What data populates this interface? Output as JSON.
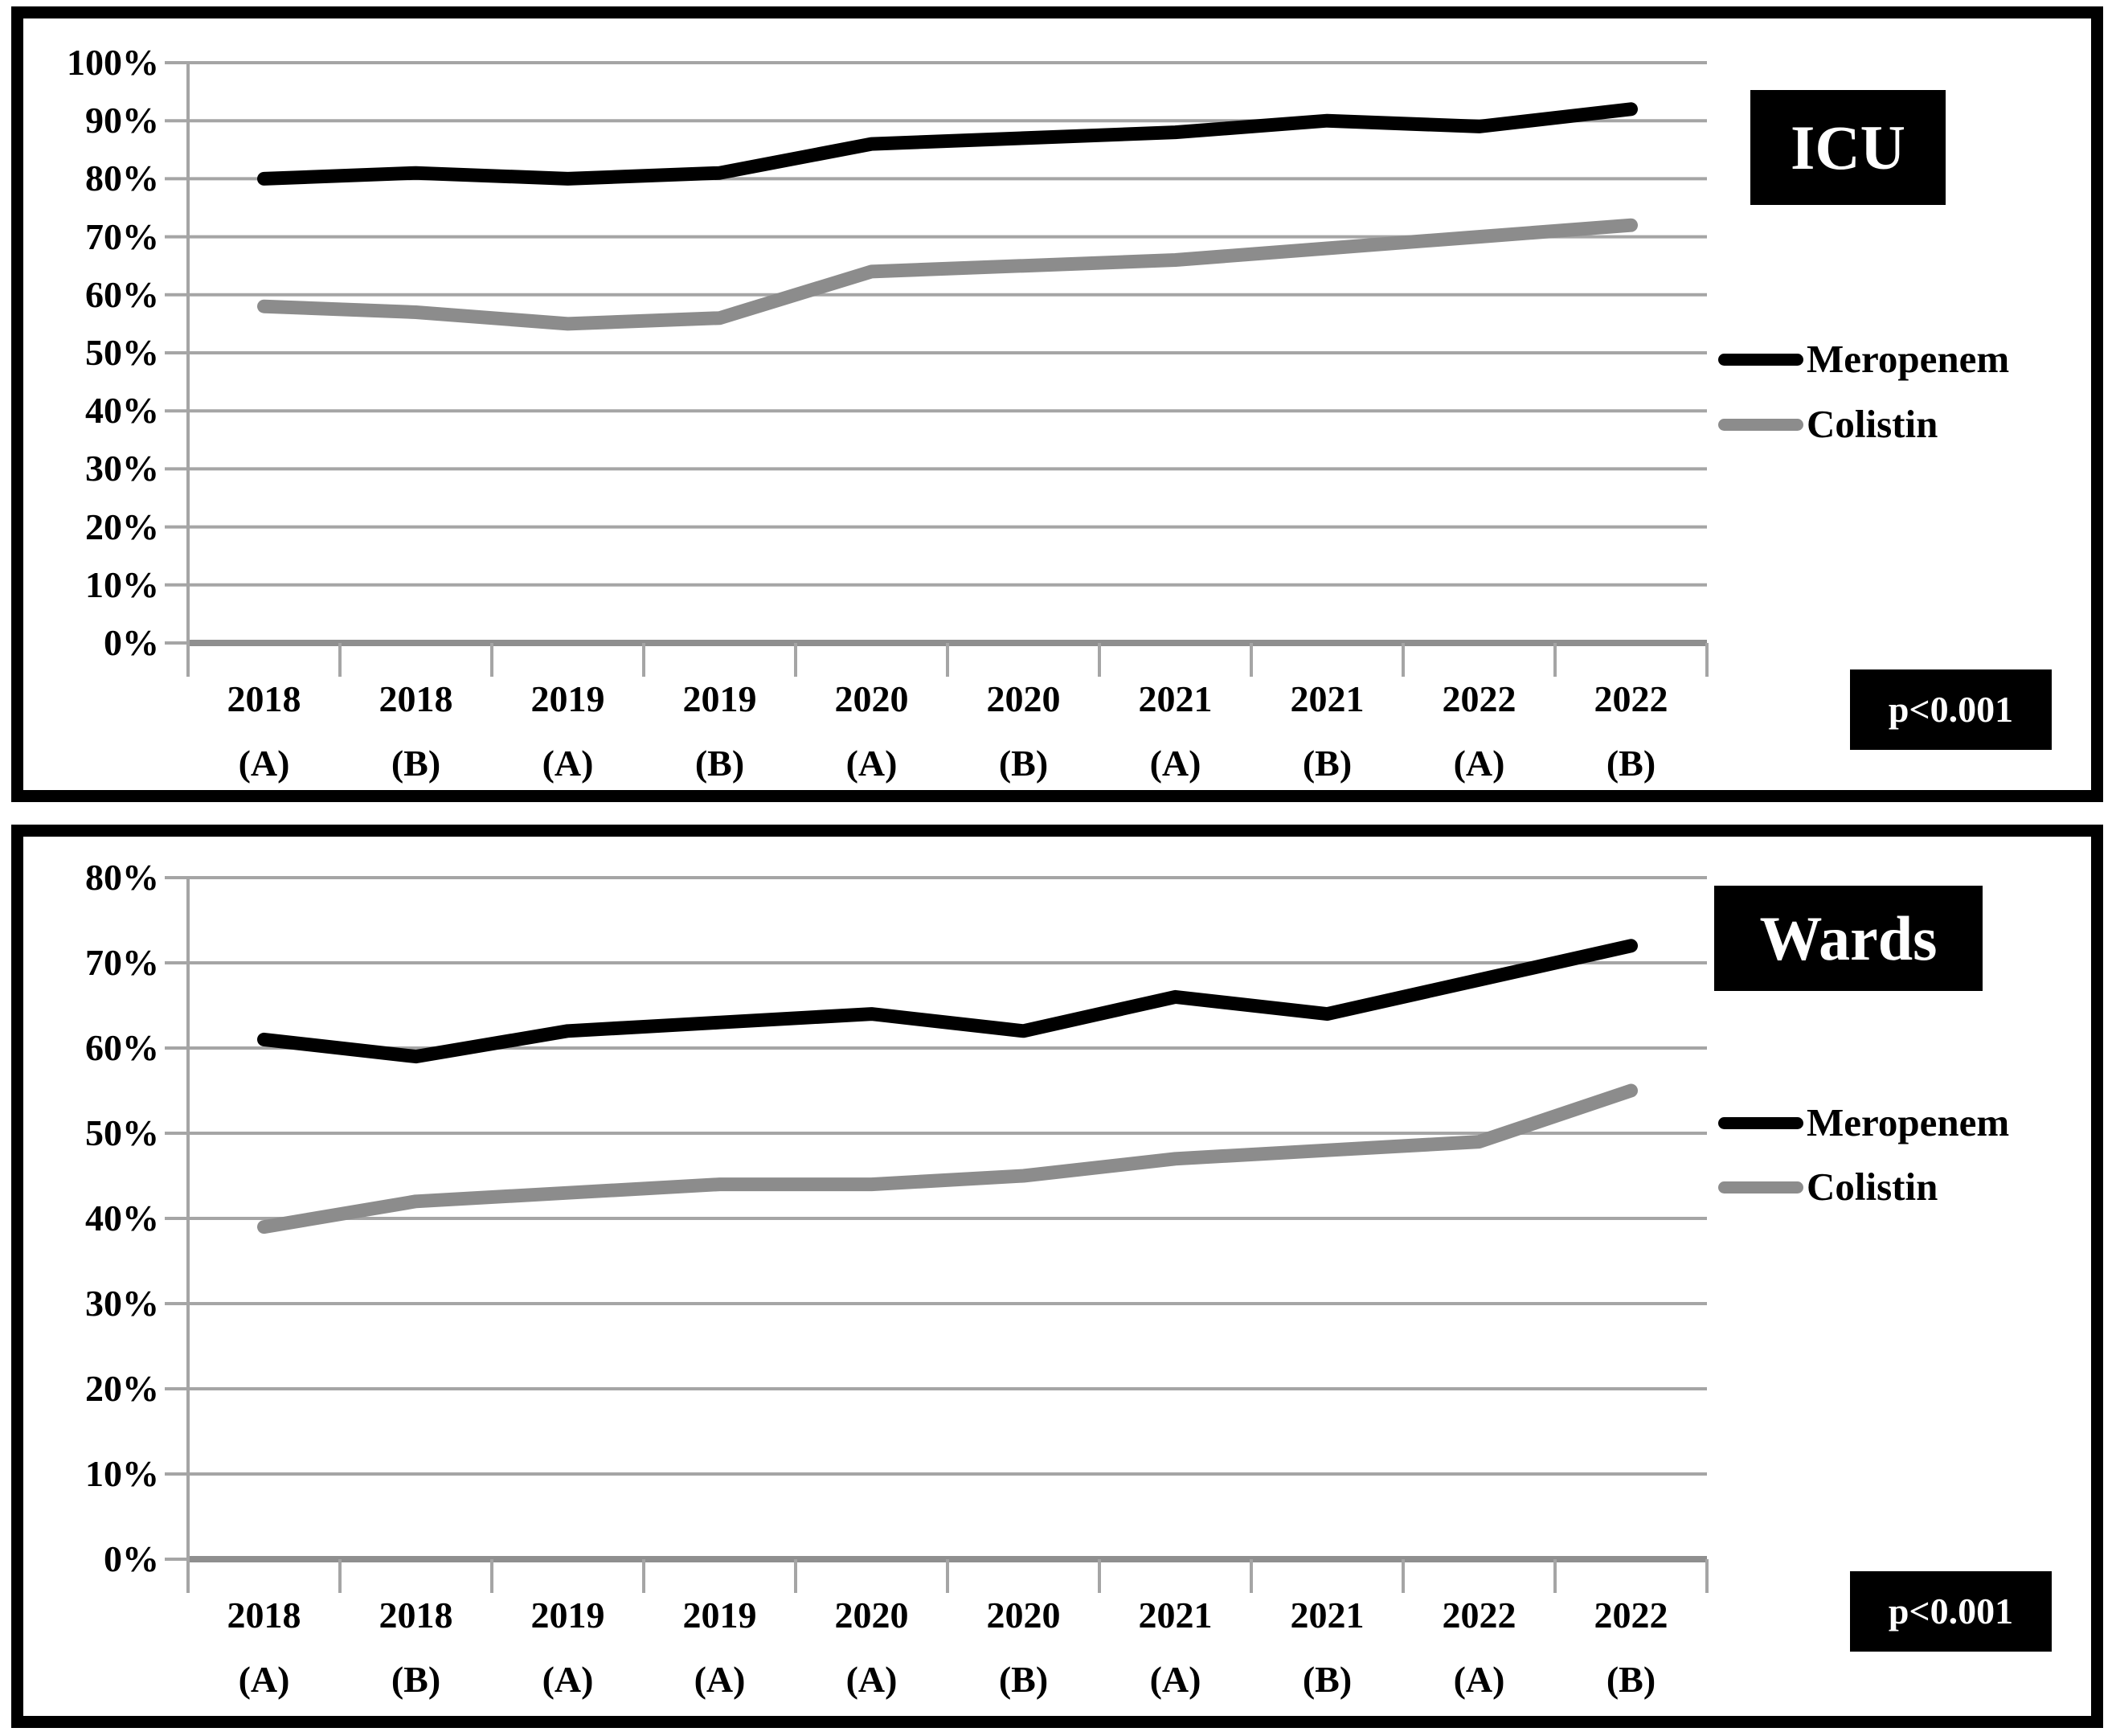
{
  "charts": [
    {
      "title": "ICU",
      "p_value_label": "p<0.001",
      "chart_data": {
        "type": "line",
        "categories": [
          "2018 (A)",
          "2018 (B)",
          "2019 (A)",
          "2019 (B)",
          "2020 (A)",
          "2020 (B)",
          "2021 (A)",
          "2021 (B)",
          "2022 (A)",
          "2022 (B)"
        ],
        "series": [
          {
            "name": "Meropenem",
            "color": "#000000",
            "values": [
              80,
              81,
              80,
              81,
              86,
              87,
              88,
              90,
              89,
              92
            ]
          },
          {
            "name": "Colistin",
            "color": "#8c8c8c",
            "values": [
              58,
              57,
              55,
              56,
              64,
              65,
              66,
              68,
              70,
              72
            ]
          }
        ],
        "title": "ICU",
        "xlabel": "",
        "ylabel": "",
        "ylim": [
          0,
          100
        ],
        "ytick_step": 10,
        "ytick_labels": [
          "100%",
          "90%",
          "80%",
          "70%",
          "60%",
          "50%",
          "40%",
          "30%",
          "20%",
          "10%",
          "0%"
        ],
        "grid": true,
        "legend_position": "right",
        "annotation": "p<0.001"
      }
    },
    {
      "title": "Wards",
      "p_value_label": "p<0.001",
      "chart_data": {
        "type": "line",
        "categories": [
          "2018 (A)",
          "2018 (B)",
          "2019 (A)",
          "2019 (A)",
          "2020 (A)",
          "2020 (B)",
          "2021 (A)",
          "2021 (B)",
          "2022 (A)",
          "2022 (B)"
        ],
        "series": [
          {
            "name": "Meropenem",
            "color": "#000000",
            "values": [
              61,
              59,
              62,
              63,
              64,
              62,
              66,
              64,
              68,
              72
            ]
          },
          {
            "name": "Colistin",
            "color": "#8c8c8c",
            "values": [
              39,
              42,
              43,
              44,
              44,
              45,
              47,
              48,
              49,
              55
            ]
          }
        ],
        "title": "Wards",
        "xlabel": "",
        "ylabel": "",
        "ylim": [
          0,
          80
        ],
        "ytick_step": 10,
        "ytick_labels": [
          "80%",
          "70%",
          "60%",
          "50%",
          "40%",
          "30%",
          "20%",
          "10%",
          "0%"
        ],
        "grid": true,
        "legend_position": "right",
        "annotation": "p<0.001"
      }
    }
  ],
  "style": {
    "gridline_color": "#a5a5a5",
    "axis_color": "#8f8f8f",
    "line_width": 17
  }
}
